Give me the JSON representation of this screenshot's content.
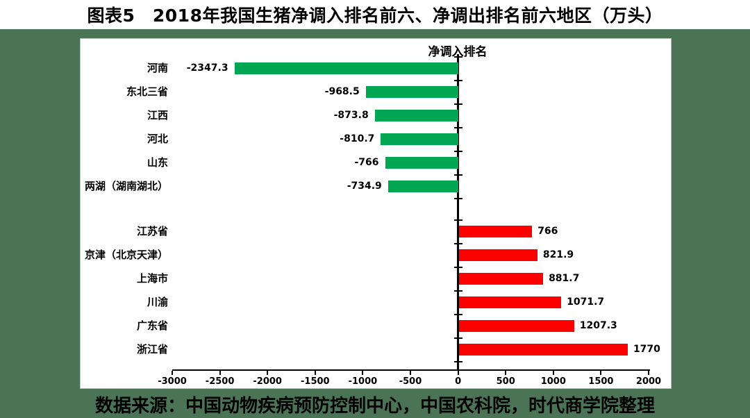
{
  "header": {
    "title": "图表5　2018年我国生猪净调入排名前六、净调出排名前六地区（万头）"
  },
  "footer": {
    "source_text": "数据来源：中国动物疾病预防控制中心，中国农科院，时代商学院整理"
  },
  "colors": {
    "page_background": "#4b7456",
    "chart_background": "#ffffff",
    "bar_negative": "#00a651",
    "bar_positive": "#ff0000",
    "axis": "#000000",
    "text": "#000000"
  },
  "chart_data": {
    "type": "bar",
    "orientation": "horizontal",
    "title": "净调入排名",
    "xlim": [
      -3000,
      2000
    ],
    "x_ticks": [
      "-3000",
      "-2500",
      "-2000",
      "-1500",
      "-1000",
      "-500",
      "0",
      "500",
      "1000",
      "1500",
      "2000"
    ],
    "grid": false,
    "legend": false,
    "groups": [
      {
        "color": "#00a651",
        "items": [
          {
            "label": "河南",
            "value": -2347.3,
            "display": "-2347.3"
          },
          {
            "label": "东北三省",
            "value": -968.5,
            "display": "-968.5"
          },
          {
            "label": "江西",
            "value": -873.8,
            "display": "-873.8"
          },
          {
            "label": "河北",
            "value": -810.7,
            "display": "-810.7"
          },
          {
            "label": "山东",
            "value": -766,
            "display": "-766"
          },
          {
            "label": "两湖（湖南湖北）",
            "value": -734.9,
            "display": "-734.9"
          }
        ]
      },
      {
        "color": "#ff0000",
        "items": [
          {
            "label": "江苏省",
            "value": 766,
            "display": "766"
          },
          {
            "label": "京津（北京天津）",
            "value": 821.9,
            "display": "821.9"
          },
          {
            "label": "上海市",
            "value": 881.7,
            "display": "881.7"
          },
          {
            "label": "川渝",
            "value": 1071.7,
            "display": "1071.7"
          },
          {
            "label": "广东省",
            "value": 1207.3,
            "display": "1207.3"
          },
          {
            "label": "浙江省",
            "value": 1770,
            "display": "1770"
          }
        ]
      }
    ]
  }
}
